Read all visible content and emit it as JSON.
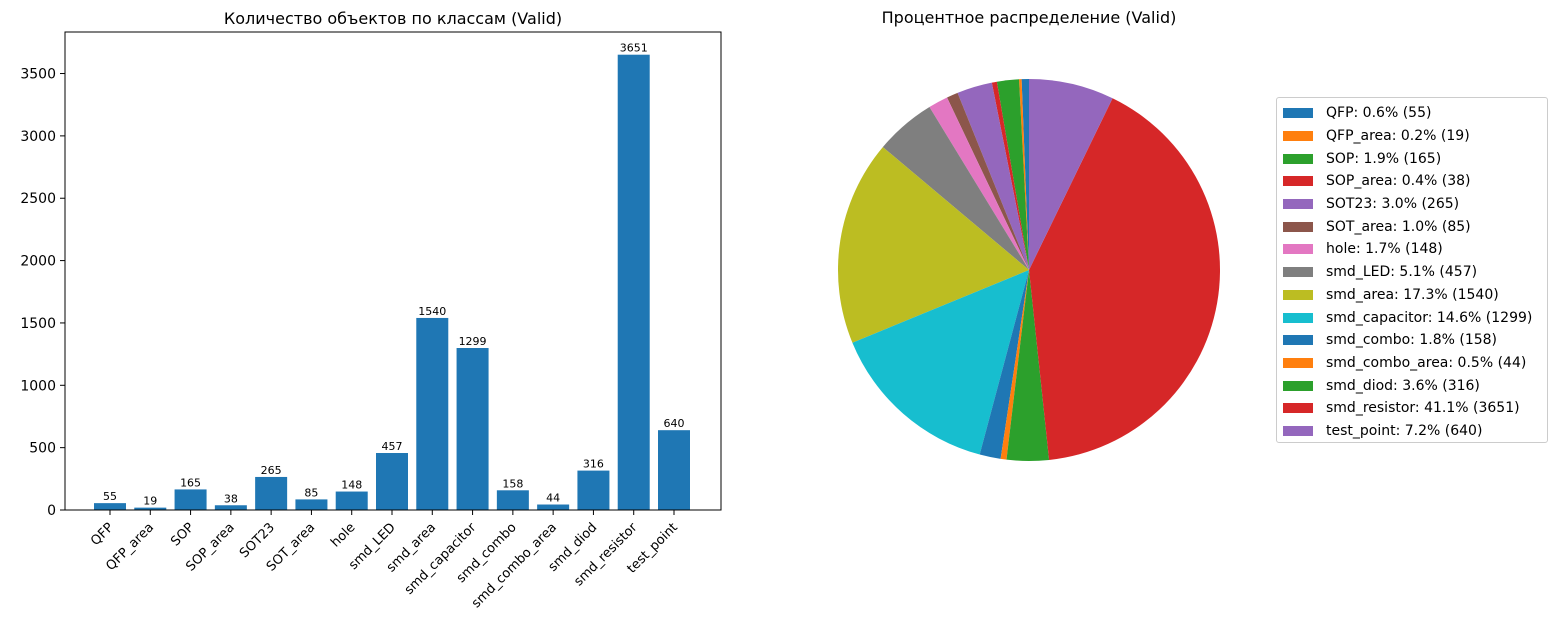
{
  "chart_data": [
    {
      "type": "bar",
      "title": "Количество объектов по классам (Valid)",
      "xlabel": "",
      "ylabel": "",
      "categories": [
        "QFP",
        "QFP_area",
        "SOP",
        "SOP_area",
        "SOT23",
        "SOT_area",
        "hole",
        "smd_LED",
        "smd_area",
        "smd_capacitor",
        "smd_combo",
        "smd_combo_area",
        "smd_diod",
        "smd_resistor",
        "test_point"
      ],
      "values": [
        55,
        19,
        165,
        38,
        265,
        85,
        148,
        457,
        1540,
        1299,
        158,
        44,
        316,
        3651,
        640
      ],
      "data_labels": [
        "55",
        "19",
        "165",
        "38",
        "265",
        "85",
        "148",
        "457",
        "1540",
        "1299",
        "158",
        "44",
        "316",
        "3651",
        "640"
      ],
      "yticks": [
        0,
        500,
        1000,
        1500,
        2000,
        2500,
        3000,
        3500
      ],
      "ylim": [
        0,
        3833
      ],
      "bar_color": "#1f77b4",
      "grid": false,
      "xtick_rotation": 45
    },
    {
      "type": "pie",
      "title": "Процентное распределение (Valid)",
      "start_angle": 90,
      "direction": "counterclockwise",
      "categories": [
        "QFP",
        "QFP_area",
        "SOP",
        "SOP_area",
        "SOT23",
        "SOT_area",
        "hole",
        "smd_LED",
        "smd_area",
        "smd_capacitor",
        "smd_combo",
        "smd_combo_area",
        "smd_diod",
        "smd_resistor",
        "test_point"
      ],
      "values": [
        55,
        19,
        165,
        38,
        265,
        85,
        148,
        457,
        1540,
        1299,
        158,
        44,
        316,
        3651,
        640
      ],
      "percentages": [
        0.6,
        0.2,
        1.9,
        0.4,
        3.0,
        1.0,
        1.7,
        5.1,
        17.3,
        14.6,
        1.8,
        0.5,
        3.6,
        41.1,
        7.2
      ],
      "colors": [
        "#1f77b4",
        "#ff7f0e",
        "#2ca02c",
        "#d62728",
        "#9467bd",
        "#8c564b",
        "#e377c2",
        "#7f7f7f",
        "#bcbd22",
        "#17becf",
        "#1f77b4",
        "#ff7f0e",
        "#2ca02c",
        "#d62728",
        "#9467bd"
      ],
      "legend_position": "right",
      "legend": [
        "QFP: 0.6% (55)",
        "QFP_area: 0.2% (19)",
        "SOP: 1.9% (165)",
        "SOP_area: 0.4% (38)",
        "SOT23: 3.0% (265)",
        "SOT_area: 1.0% (85)",
        "hole: 1.7% (148)",
        "smd_LED: 5.1% (457)",
        "smd_area: 17.3% (1540)",
        "smd_capacitor: 14.6% (1299)",
        "smd_combo: 1.8% (158)",
        "smd_combo_area: 0.5% (44)",
        "smd_diod: 3.6% (316)",
        "smd_resistor: 41.1% (3651)",
        "test_point: 7.2% (640)"
      ]
    }
  ]
}
